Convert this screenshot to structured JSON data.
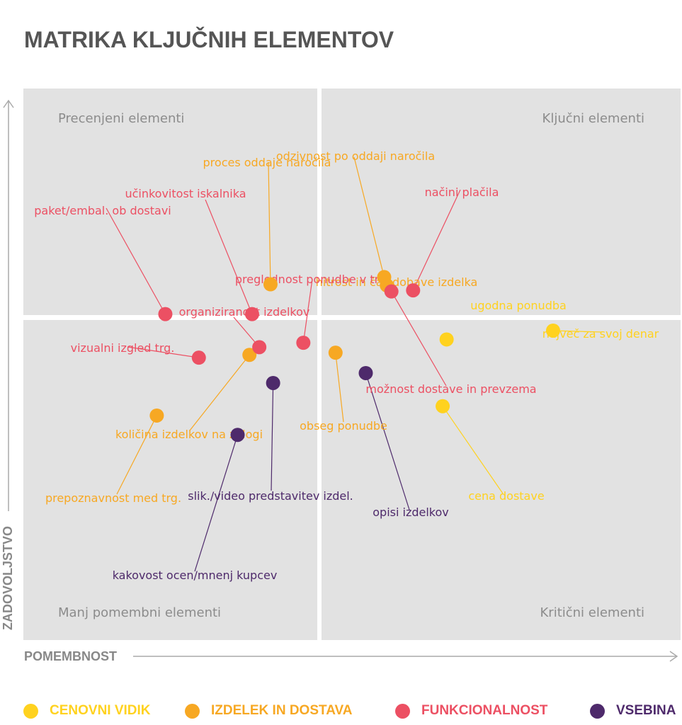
{
  "title": "MATRIKA KLJUČNIH ELEMENTOV",
  "colors": {
    "cenovni": "#FFD21F",
    "izdelek": "#F7A823",
    "funkcionalnost": "#EC5063",
    "vsebina": "#4E2A6B",
    "panel": "#E2E2E2",
    "quadrant_text": "#8C8C8C",
    "axis": "#AAAAAA"
  },
  "chart_data": {
    "type": "scatter",
    "title": "MATRIKA KLJUČNIH ELEMENTOV",
    "xlabel": "POMEMBNOST",
    "ylabel": "ZADOVOLJSTVO",
    "xlim": [
      0,
      100
    ],
    "ylim": [
      0,
      100
    ],
    "grid": false,
    "legend_position": "bottom",
    "quadrants": [
      {
        "name": "Precenjeni elementi",
        "position": "top-left"
      },
      {
        "name": "Ključni elementi",
        "position": "top-right"
      },
      {
        "name": "Manj pomembni elementi",
        "position": "bottom-left"
      },
      {
        "name": "Kritični elementi",
        "position": "bottom-right"
      }
    ],
    "series": [
      {
        "name": "CENOVNI VIDIK",
        "color_key": "cenovni",
        "points": [
          {
            "label": "ugodna ponudba",
            "x": 64.4,
            "y": 54.5
          },
          {
            "label": "največ za svoj denar",
            "x": 80.6,
            "y": 56.1
          },
          {
            "label": "cena dostave",
            "x": 63.8,
            "y": 42.4
          }
        ]
      },
      {
        "name": "IZDELEK IN DOSTAVA",
        "color_key": "izdelek",
        "points": [
          {
            "label": "proces oddaje naročila",
            "x": 37.6,
            "y": 64.5
          },
          {
            "label": "odzivnost po oddaji naročila",
            "x": 54.9,
            "y": 65.8
          },
          {
            "label": "hitrost in čas dobave izdelka",
            "x": 55.3,
            "y": 64.3
          },
          {
            "label": "količina izdelkov na zalogi",
            "x": 34.4,
            "y": 51.7
          },
          {
            "label": "prepoznavnost med trg.",
            "x": 20.3,
            "y": 40.7
          },
          {
            "label": "obseg ponudbe",
            "x": 47.5,
            "y": 52.1
          }
        ]
      },
      {
        "name": "FUNKCIONALNOST",
        "color_key": "funkcionalnost",
        "points": [
          {
            "label": "paket/embal. ob dostavi",
            "x": 21.6,
            "y": 59.1
          },
          {
            "label": "učinkovitost iskalnika",
            "x": 34.8,
            "y": 59.1
          },
          {
            "label": "preglednost ponudbe v trg.",
            "x": 42.6,
            "y": 53.9
          },
          {
            "label": "organiziranost izdelkov",
            "x": 35.9,
            "y": 53.1
          },
          {
            "label": "vizualni izgled trg.",
            "x": 26.7,
            "y": 51.2
          },
          {
            "label": "načini plačila",
            "x": 59.3,
            "y": 63.4
          },
          {
            "label": "možnost dostave in prevzema",
            "x": 56.0,
            "y": 63.2
          }
        ]
      },
      {
        "name": "VSEBINA",
        "color_key": "vsebina",
        "points": [
          {
            "label": "slik./video predstavitev izdel.",
            "x": 38.0,
            "y": 46.6
          },
          {
            "label": "kakovost ocen/mnenj kupcev",
            "x": 32.6,
            "y": 37.2
          },
          {
            "label": "opisi izdelkov",
            "x": 52.1,
            "y": 48.4
          }
        ]
      }
    ]
  }
}
